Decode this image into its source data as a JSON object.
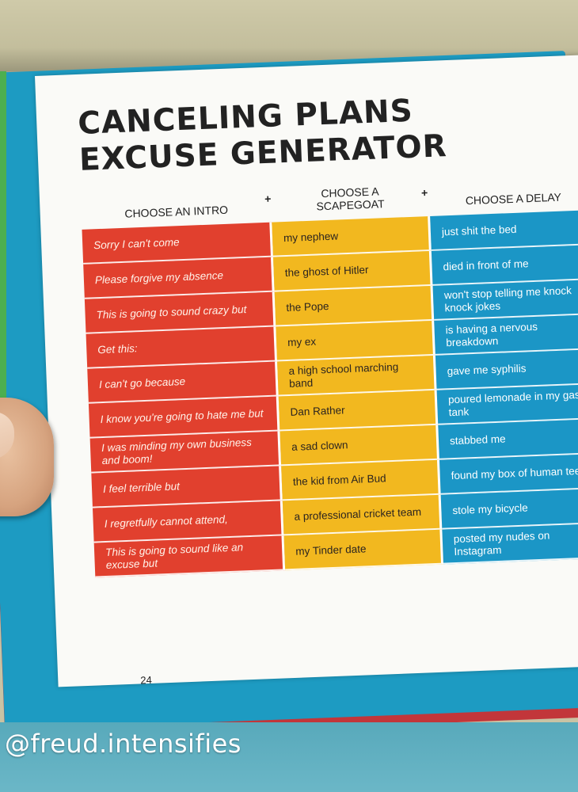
{
  "title_line1": "CANCELING PLANS",
  "title_line2": "EXCUSE GENERATOR",
  "headers": {
    "intro": "CHOOSE AN INTRO",
    "scapegoat_line1": "CHOOSE A",
    "scapegoat_line2": "SCAPEGOAT",
    "delay": "CHOOSE A DELAY",
    "plus1": "+",
    "plus2": "+"
  },
  "intros": [
    "Sorry I can't come",
    "Please forgive my absence",
    "This is going to sound crazy but",
    "Get this:",
    "I can't go because",
    "I know you're going to hate me but",
    "I was minding my own business and boom!",
    "I feel terrible but",
    "I regretfully cannot attend,",
    "This is going to sound like an excuse but"
  ],
  "scapegoats": [
    "my nephew",
    "the ghost of Hitler",
    "the Pope",
    "my ex",
    "a high school marching band",
    "Dan Rather",
    "a sad clown",
    "the kid from Air Bud",
    "a professional cricket team",
    "my Tinder date"
  ],
  "delays": [
    "just shit the bed",
    "died in front of me",
    "won't stop telling me knock knock jokes",
    "is having a nervous breakdown",
    "gave me syphilis",
    "poured lemonade in my gas tank",
    "stabbed me",
    "found my box of human teeth",
    "stole my bicycle",
    "posted my nudes on Instagram"
  ],
  "page_number": "24",
  "watermark": "@freud.intensifies",
  "colors": {
    "intro": "#e1402e",
    "scapegoat": "#f2b81f",
    "delay": "#1b96c6",
    "cover": "#1d9bc2"
  }
}
